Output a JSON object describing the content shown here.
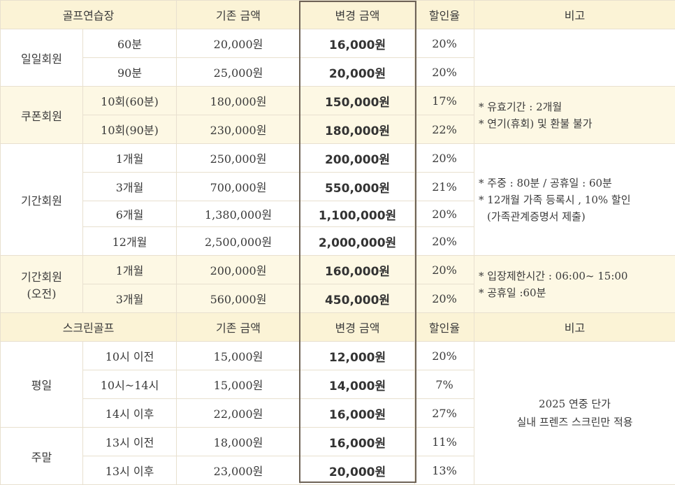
{
  "golf": {
    "headers": [
      "골프연습장",
      "기존 금액",
      "변경 금액",
      "할인율",
      "비고"
    ],
    "groups": [
      {
        "name": "일일회원",
        "rows": [
          {
            "item": "60분",
            "old": "20,000원",
            "new": "16,000원",
            "rate": "20%"
          },
          {
            "item": "90분",
            "old": "25,000원",
            "new": "20,000원",
            "rate": "20%"
          }
        ],
        "note": []
      },
      {
        "name": "쿠폰회원",
        "rows": [
          {
            "item": "10회(60분)",
            "old": "180,000원",
            "new": "150,000원",
            "rate": "17%"
          },
          {
            "item": "10회(90분)",
            "old": "230,000원",
            "new": "180,000원",
            "rate": "22%"
          }
        ],
        "note": [
          "* 유효기간 : 2개월",
          "* 연기(휴회) 및 환불 불가"
        ]
      },
      {
        "name": "기간회원",
        "rows": [
          {
            "item": "1개월",
            "old": "250,000원",
            "new": "200,000원",
            "rate": "20%"
          },
          {
            "item": "3개월",
            "old": "700,000원",
            "new": "550,000원",
            "rate": "21%"
          },
          {
            "item": "6개월",
            "old": "1,380,000원",
            "new": "1,100,000원",
            "rate": "20%"
          },
          {
            "item": "12개월",
            "old": "2,500,000원",
            "new": "2,000,000원",
            "rate": "20%"
          }
        ],
        "note": [
          "* 주중 : 80분 / 공휴일 : 60분",
          "* 12개월 가족 등록시 , 10% 할인",
          "(가족관계증명서 제출)"
        ]
      },
      {
        "name": "기간회원",
        "name2": "(오전)",
        "rows": [
          {
            "item": "1개월",
            "old": "200,000원",
            "new": "160,000원",
            "rate": "20%"
          },
          {
            "item": "3개월",
            "old": "560,000원",
            "new": "450,000원",
            "rate": "20%"
          }
        ],
        "note": [
          "* 입장제한시간 : 06:00~ 15:00",
          "* 공휴일 :60분"
        ]
      }
    ]
  },
  "screen": {
    "headers": [
      "스크린골프",
      "기존 금액",
      "변경 금액",
      "할인율",
      "비고"
    ],
    "groups": [
      {
        "name": "평일",
        "rows": [
          {
            "item": "10시 이전",
            "old": "15,000원",
            "new": "12,000원",
            "rate": "20%"
          },
          {
            "item": "10시~14시",
            "old": "15,000원",
            "new": "14,000원",
            "rate": "7%"
          },
          {
            "item": "14시 이후",
            "old": "22,000원",
            "new": "16,000원",
            "rate": "27%"
          }
        ]
      },
      {
        "name": "주말",
        "rows": [
          {
            "item": "13시 이전",
            "old": "18,000원",
            "new": "16,000원",
            "rate": "11%"
          },
          {
            "item": "13시 이후",
            "old": "23,000원",
            "new": "20,000원",
            "rate": "13%"
          }
        ]
      }
    ],
    "note": [
      "2025 연중 단가",
      "실내 프렌즈 스크린만 적용"
    ]
  }
}
